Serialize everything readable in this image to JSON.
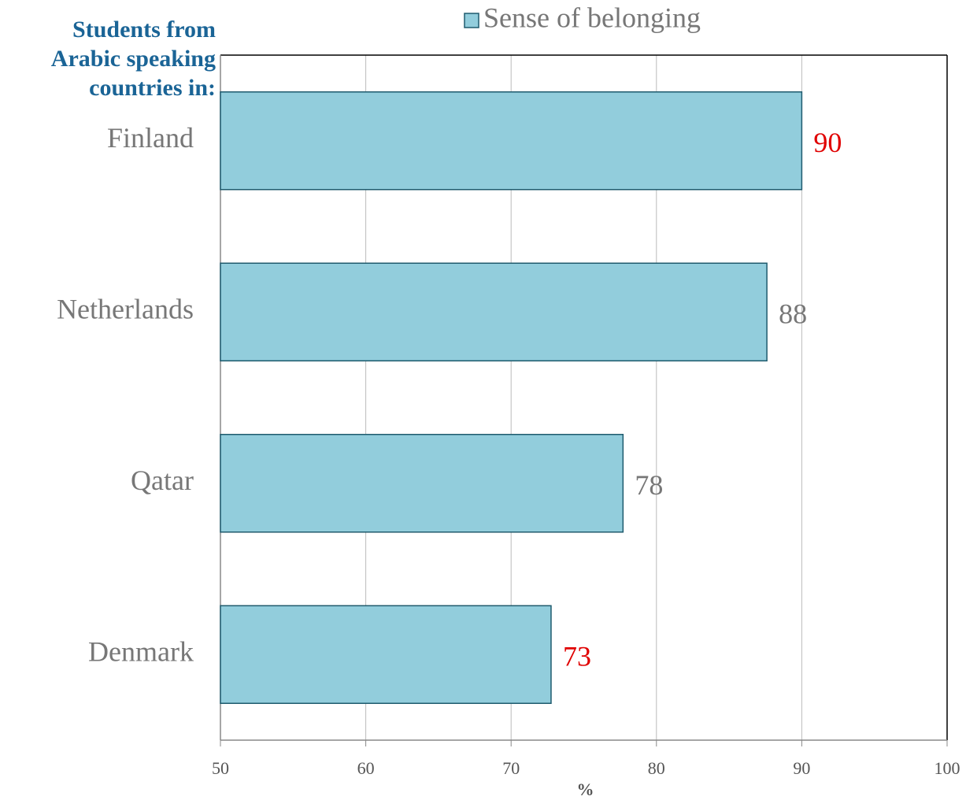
{
  "chart_data": {
    "type": "bar",
    "orientation": "horizontal",
    "ylabel": [
      "Students from",
      "Arabic speaking",
      "countries in:"
    ],
    "xlabel": "%",
    "categories": [
      "Finland",
      "Netherlands",
      "Qatar",
      "Denmark"
    ],
    "series": [
      {
        "name": "Sense of belonging",
        "color": "#92cddc",
        "values": [
          90.0,
          87.6,
          77.7,
          72.75
        ],
        "value_labels": [
          "90",
          "88",
          "78",
          "73"
        ],
        "value_label_colors": [
          "#e00000",
          "#777777",
          "#777777",
          "#e00000"
        ]
      }
    ],
    "xlim": [
      50,
      100
    ],
    "xticks": [
      50,
      60,
      70,
      80,
      90,
      100
    ],
    "grid": true,
    "legend": "top"
  }
}
